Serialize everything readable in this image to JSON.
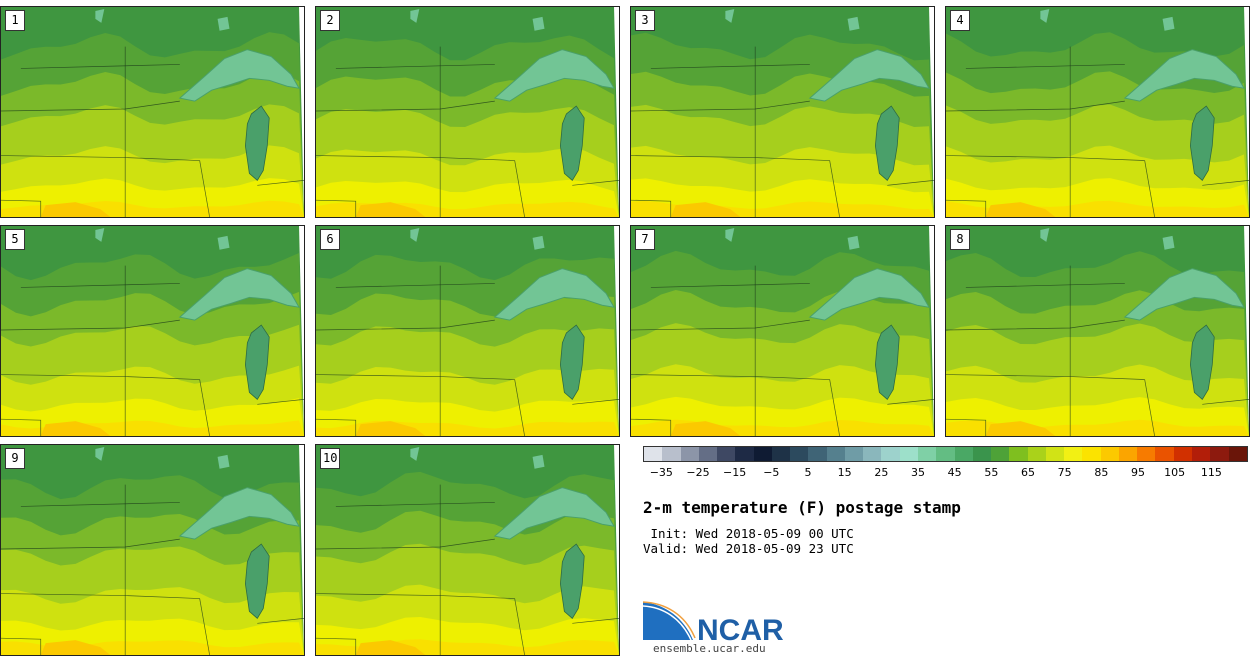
{
  "panels": [
    {
      "label": "1"
    },
    {
      "label": "2"
    },
    {
      "label": "3"
    },
    {
      "label": "4"
    },
    {
      "label": "5"
    },
    {
      "label": "6"
    },
    {
      "label": "7"
    },
    {
      "label": "8"
    },
    {
      "label": "9"
    },
    {
      "label": "10"
    }
  ],
  "colorbar": {
    "colors": [
      "#dfe3ea",
      "#b8bfcc",
      "#8c95a8",
      "#646e86",
      "#3e4863",
      "#1e2a45",
      "#0f1b33",
      "#1e3247",
      "#2c4a5e",
      "#3f6476",
      "#55808e",
      "#6f9ca6",
      "#8ab7bc",
      "#9dd2cc",
      "#9de0ca",
      "#7fd0a6",
      "#63bd83",
      "#4aa865",
      "#3a944c",
      "#4ea238",
      "#7fbf1f",
      "#aad21a",
      "#d1e316",
      "#f2f014",
      "#fbe300",
      "#fcc900",
      "#fba500",
      "#f77b00",
      "#ea5300",
      "#d13000",
      "#b21e09",
      "#8d1a0e",
      "#6a1509"
    ],
    "tick_labels": [
      "−35",
      "−25",
      "−15",
      "−5",
      "5",
      "15",
      "25",
      "35",
      "45",
      "55",
      "65",
      "75",
      "85",
      "95",
      "105",
      "115"
    ],
    "tick_values": [
      -35,
      -25,
      -15,
      -5,
      5,
      15,
      25,
      35,
      45,
      55,
      65,
      75,
      85,
      95,
      105,
      115
    ],
    "min": -40,
    "max": 125
  },
  "title": "2-m temperature (F) postage stamp",
  "init_line": " Init: Wed 2018-05-09 00 UTC",
  "valid_line": "Valid: Wed 2018-05-09 23 UTC",
  "logo": {
    "text": "NCAR",
    "url": "ensemble.ucar.edu",
    "brand_color": "#1f5fa6"
  },
  "map_colors": {
    "north": "#3f9640",
    "mid": "#55a336",
    "band1": "#7bb92a",
    "band2": "#a6cf1d",
    "band3": "#cfe110",
    "south": "#eef000",
    "far_south": "#f9e000",
    "hot": "#fbc900",
    "lake": "#72c595",
    "lake_dark": "#4aa06a"
  }
}
